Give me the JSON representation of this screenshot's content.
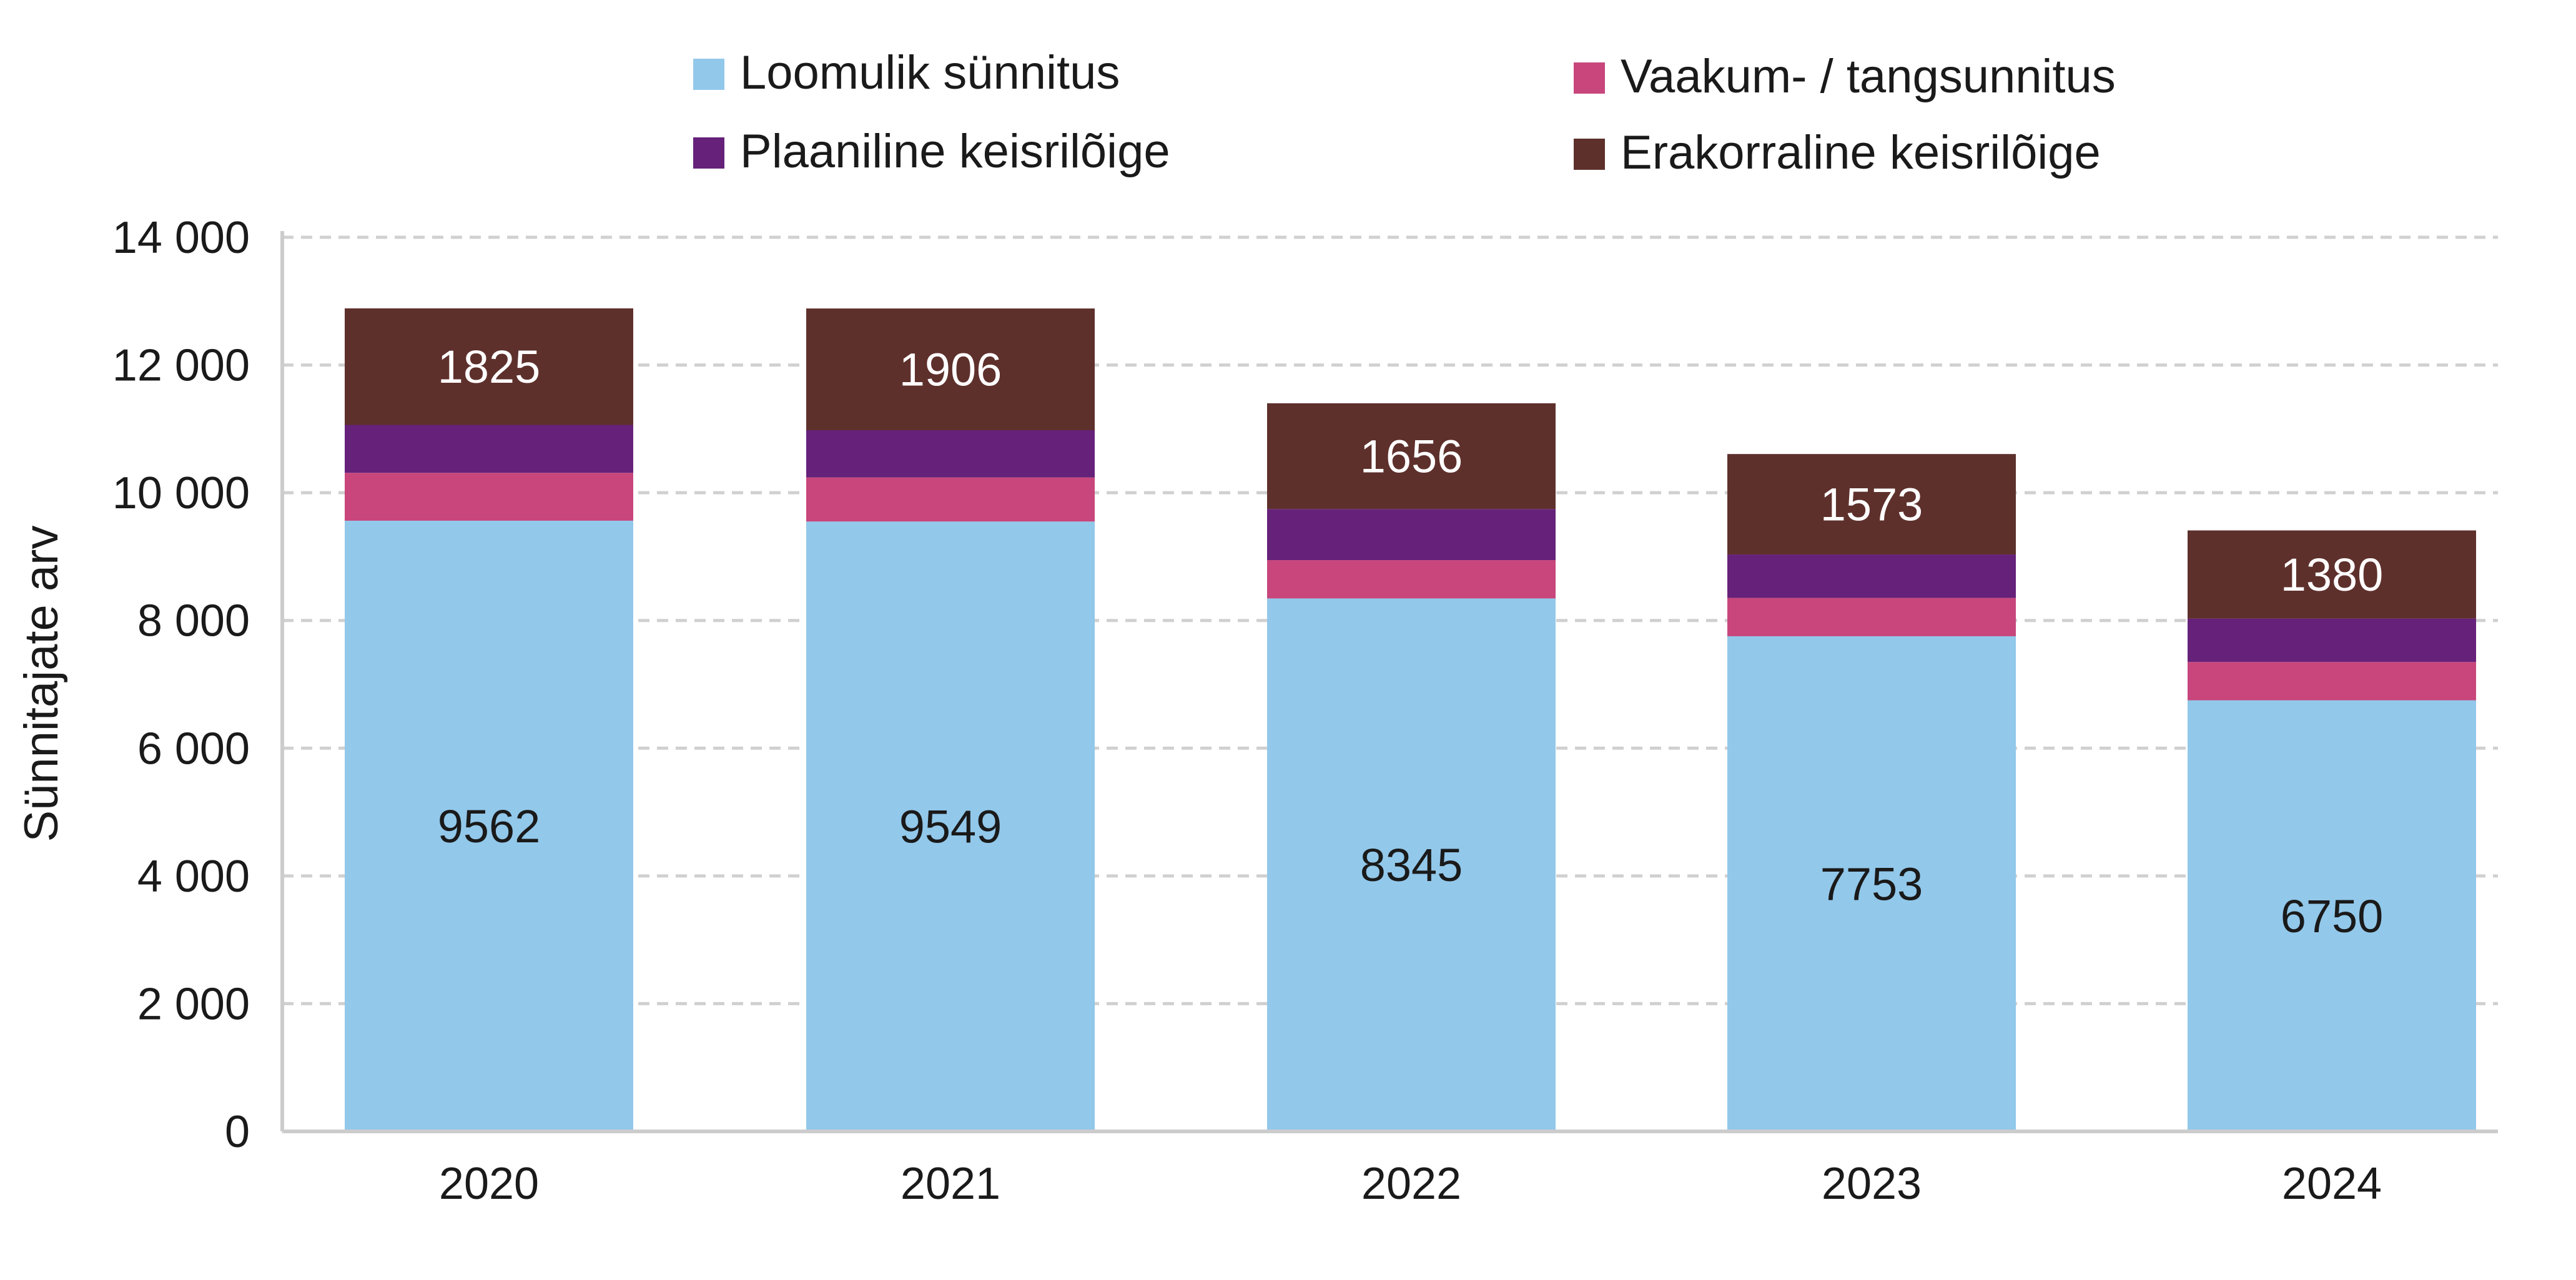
{
  "chart_data": {
    "type": "bar",
    "stacked": true,
    "categories": [
      "2020",
      "2021",
      "2022",
      "2023",
      "2024"
    ],
    "series": [
      {
        "name": "Loomulik sünnitus",
        "color": "#92C8EA",
        "values": [
          9562,
          9549,
          8345,
          7753,
          6750
        ]
      },
      {
        "name": "Vaakum- / tangsunnitus",
        "color": "#C8467C",
        "values": [
          750,
          690,
          600,
          600,
          600
        ]
      },
      {
        "name": "Plaaniline keisrilõige",
        "color": "#66217A",
        "values": [
          750,
          740,
          800,
          680,
          680
        ]
      },
      {
        "name": "Erakorraline keisrilõige",
        "color": "#5E302C",
        "values": [
          1825,
          1906,
          1656,
          1573,
          1380
        ]
      }
    ],
    "labeled_series": [
      "Loomulik sünnitus",
      "Erakorraline keisrilõige"
    ],
    "data_labels": {
      "Loomulik sünnitus": [
        "9562",
        "9549",
        "8345",
        "7753",
        "6750"
      ],
      "Erakorraline keisrilõige": [
        "1825",
        "1906",
        "1656",
        "1573",
        "1380"
      ]
    },
    "title": "",
    "xlabel": "",
    "ylabel": "Sünnitajate arv",
    "ylim": [
      0,
      14000
    ],
    "yticks": [
      0,
      2000,
      4000,
      6000,
      8000,
      10000,
      12000,
      14000
    ],
    "ytick_labels": [
      "0",
      "2 000",
      "4 000",
      "6 000",
      "8 000",
      "10 000",
      "12 000",
      "14 000"
    ],
    "grid": true,
    "legend_position": "top"
  }
}
